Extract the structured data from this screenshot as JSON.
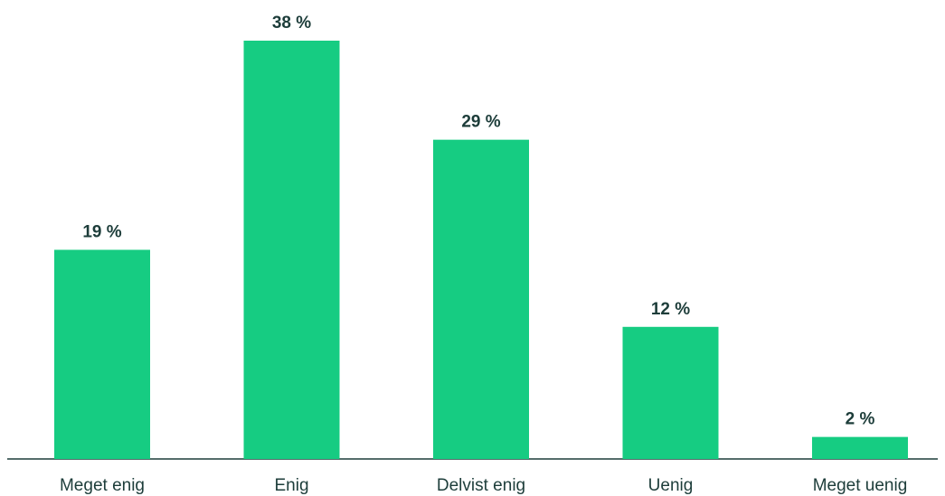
{
  "chart_data": {
    "type": "bar",
    "title": "",
    "xlabel": "",
    "ylabel": "",
    "categories": [
      "Meget enig",
      "Enig",
      "Delvist enig",
      "Uenig",
      "Meget uenig"
    ],
    "values": [
      19,
      38,
      29,
      12,
      2
    ],
    "value_labels": [
      "19 %",
      "38 %",
      "29 %",
      "12 %",
      "2 %"
    ],
    "ylim": [
      0,
      38
    ],
    "grid": false,
    "legend": "none",
    "colors": {
      "bar": "#16cc82",
      "text": "#1d3d3a",
      "axis": "#1d3d3a"
    }
  }
}
